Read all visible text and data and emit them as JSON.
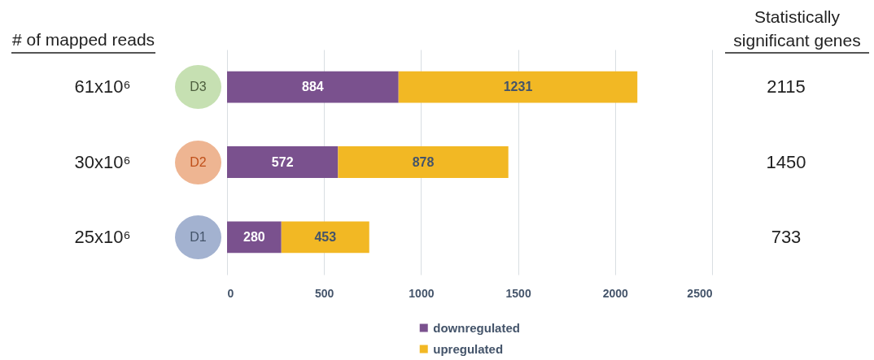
{
  "chart_data": {
    "type": "bar",
    "orientation": "horizontal",
    "stacked": true,
    "categories": [
      "D3",
      "D2",
      "D1"
    ],
    "series": [
      {
        "name": "downregulated",
        "color": "#7a518e",
        "values": [
          884,
          572,
          280
        ]
      },
      {
        "name": "upregulated",
        "color": "#f2b824",
        "values": [
          1231,
          878,
          453
        ]
      }
    ],
    "data_labels": true,
    "xlim": [
      0,
      2500
    ],
    "xticks": [
      0,
      500,
      1000,
      1500,
      2000,
      2500
    ],
    "grid": "x",
    "legend": "bottom",
    "annotations": [
      "# of mapped reads",
      "61x10⁶",
      "30x10⁶",
      "25x10⁶",
      "Statistically significant genes",
      "2115",
      "1450",
      "733"
    ]
  }
}
